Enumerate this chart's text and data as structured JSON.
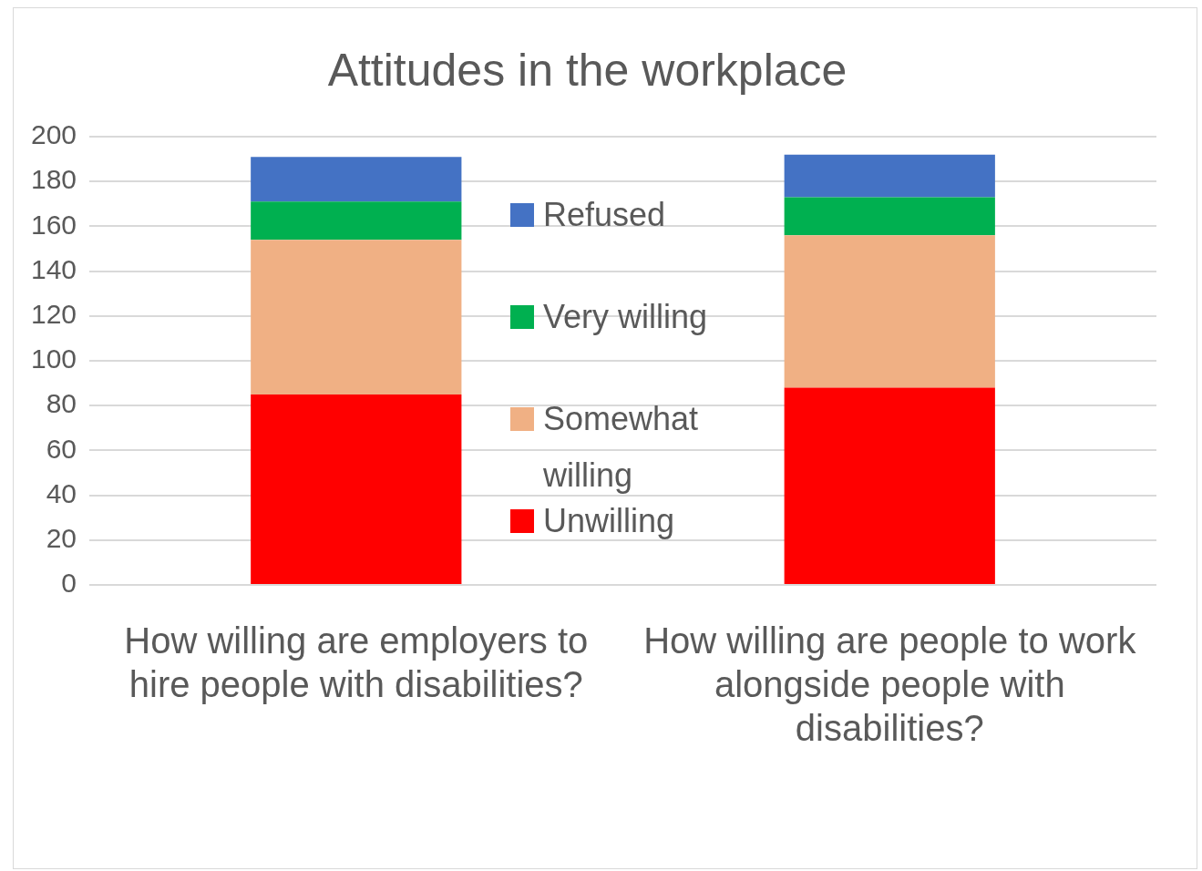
{
  "chart_data": {
    "type": "bar",
    "title": "Attitudes in the workplace",
    "categories": [
      "How willing are employers to hire people with disabilities?",
      "How willing are people to work alongside people with disabilities?"
    ],
    "series": [
      {
        "name": "Unwilling",
        "color": "#ff0000",
        "values": [
          85,
          88
        ]
      },
      {
        "name": "Somewhat willing",
        "color": "#f0b084",
        "values": [
          69,
          68
        ]
      },
      {
        "name": "Very willing",
        "color": "#00b050",
        "values": [
          17,
          17
        ]
      },
      {
        "name": "Refused",
        "color": "#4472c4",
        "values": [
          20,
          19
        ]
      }
    ],
    "stacked": true,
    "ylim": [
      0,
      200
    ],
    "yticks": [
      0,
      20,
      40,
      60,
      80,
      100,
      120,
      140,
      160,
      180,
      200
    ],
    "grid": "y",
    "legend": "center"
  }
}
